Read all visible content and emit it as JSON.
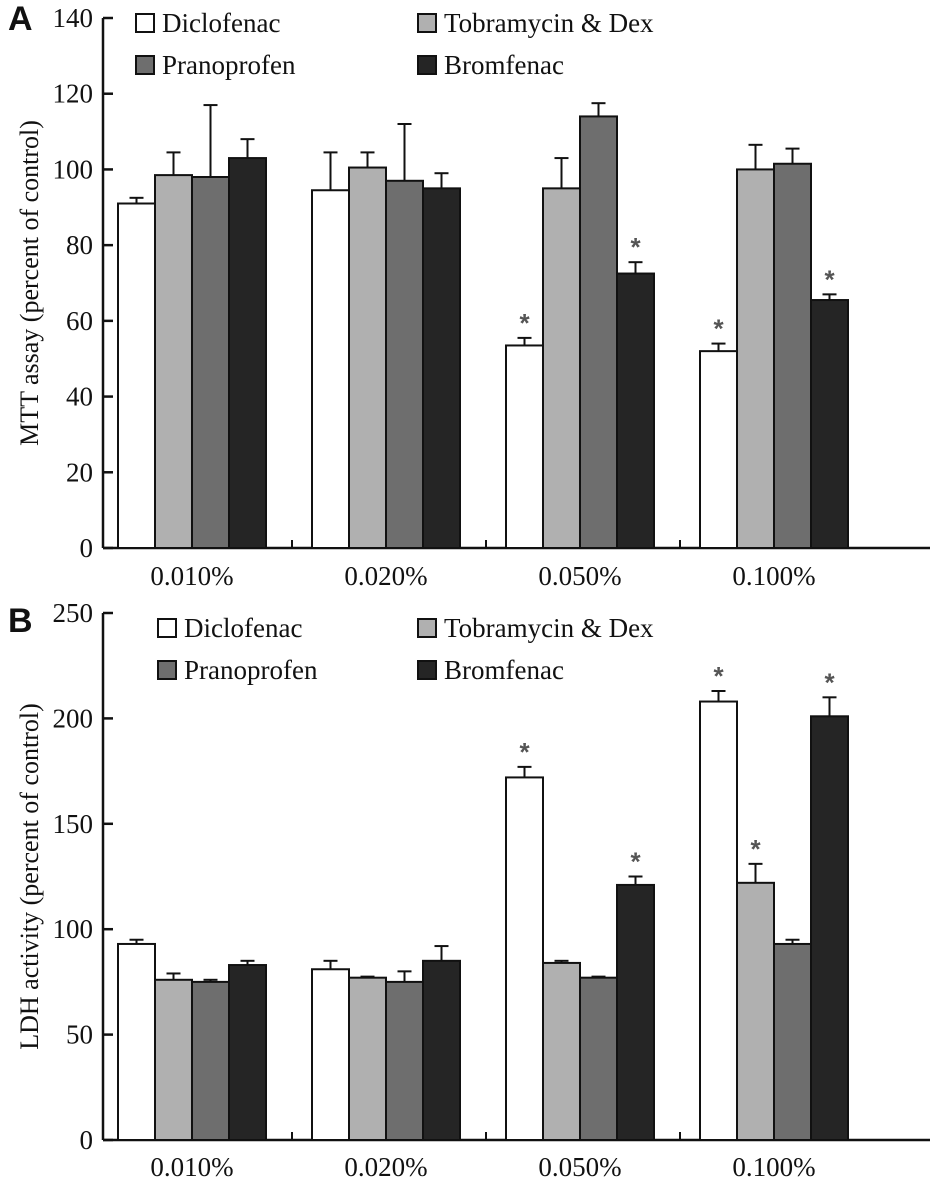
{
  "chart_data": [
    {
      "type": "bar",
      "panel": "A",
      "title": "",
      "xlabel": "",
      "ylabel": "MTT assay (percent of control)",
      "ylim": [
        0,
        140
      ],
      "yticks": [
        0,
        20,
        40,
        60,
        80,
        100,
        120,
        140
      ],
      "grid": false,
      "legend_position": "top",
      "categories": [
        "0.010%",
        "0.020%",
        "0.050%",
        "0.100%"
      ],
      "series": [
        {
          "name": "Diclofenac",
          "color": "#ffffff",
          "values": [
            91,
            94.5,
            53.5,
            52
          ],
          "errors": [
            1.5,
            10,
            2,
            2
          ],
          "significant": [
            false,
            false,
            true,
            true
          ]
        },
        {
          "name": "Tobramycin & Dex",
          "color": "#b0b0b0",
          "values": [
            98.5,
            100.5,
            95,
            100
          ],
          "errors": [
            6,
            4,
            8,
            6.5
          ],
          "significant": [
            false,
            false,
            false,
            false
          ]
        },
        {
          "name": "Pranoprofen",
          "color": "#6e6e6e",
          "values": [
            98,
            97,
            114,
            101.5
          ],
          "errors": [
            19,
            15,
            3.5,
            4
          ],
          "significant": [
            false,
            false,
            false,
            false
          ]
        },
        {
          "name": "Bromfenac",
          "color": "#252525",
          "values": [
            103,
            95,
            72.5,
            65.5
          ],
          "errors": [
            5,
            4,
            3,
            1.5
          ],
          "significant": [
            false,
            false,
            true,
            true
          ]
        }
      ],
      "significance_marker": "*"
    },
    {
      "type": "bar",
      "panel": "B",
      "title": "",
      "xlabel": "",
      "ylabel": "LDH activity (percent of control)",
      "ylim": [
        0,
        250
      ],
      "yticks": [
        0,
        50,
        100,
        150,
        200,
        250
      ],
      "grid": false,
      "legend_position": "top",
      "categories": [
        "0.010%",
        "0.020%",
        "0.050%",
        "0.100%"
      ],
      "series": [
        {
          "name": "Diclofenac",
          "color": "#ffffff",
          "values": [
            93,
            81,
            172,
            208
          ],
          "errors": [
            2,
            4,
            5,
            5
          ],
          "significant": [
            false,
            false,
            true,
            true
          ]
        },
        {
          "name": "Tobramycin & Dex",
          "color": "#b0b0b0",
          "values": [
            76,
            77,
            84,
            122
          ],
          "errors": [
            3,
            0.5,
            1,
            9
          ],
          "significant": [
            false,
            false,
            false,
            true
          ]
        },
        {
          "name": "Pranoprofen",
          "color": "#6e6e6e",
          "values": [
            75,
            75,
            77,
            93
          ],
          "errors": [
            1,
            5,
            0.5,
            2
          ],
          "significant": [
            false,
            false,
            false,
            false
          ]
        },
        {
          "name": "Bromfenac",
          "color": "#252525",
          "values": [
            83,
            85,
            121,
            201
          ],
          "errors": [
            2,
            7,
            4,
            9
          ],
          "significant": [
            false,
            false,
            true,
            true
          ]
        }
      ],
      "significance_marker": "*"
    }
  ]
}
